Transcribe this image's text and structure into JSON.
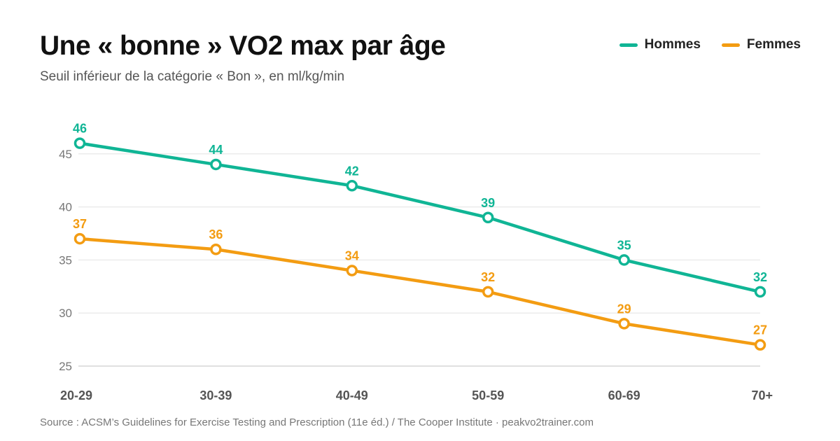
{
  "header": {
    "title": "Une « bonne » VO2 max par âge",
    "subtitle": "Seuil inférieur de la catégorie « Bon », en ml/kg/min"
  },
  "legend": {
    "items": [
      {
        "label": "Hommes",
        "color": "#10b595"
      },
      {
        "label": "Femmes",
        "color": "#f39c12"
      }
    ],
    "position": "top-right"
  },
  "footer": {
    "source": "Source : ACSM’s Guidelines for Exercise Testing and Prescription (11e éd.) / The Cooper Institute · peakvo2trainer.com"
  },
  "chart_data": {
    "type": "line",
    "categories": [
      "20-29",
      "30-39",
      "40-49",
      "50-59",
      "60-69",
      "70+"
    ],
    "series": [
      {
        "name": "Hommes",
        "values": [
          46,
          44,
          42,
          39,
          35,
          32
        ],
        "color": "#10b595"
      },
      {
        "name": "Femmes",
        "values": [
          37,
          36,
          34,
          32,
          29,
          27
        ],
        "color": "#f39c12"
      }
    ],
    "yticks": [
      25,
      30,
      35,
      40,
      45
    ],
    "ylim": [
      25,
      47
    ],
    "grid": true,
    "data_labels": true,
    "title": "Une « bonne » VO2 max par âge",
    "subtitle": "Seuil inférieur de la catégorie « Bon », en ml/kg/min",
    "xlabel": "",
    "ylabel": ""
  }
}
